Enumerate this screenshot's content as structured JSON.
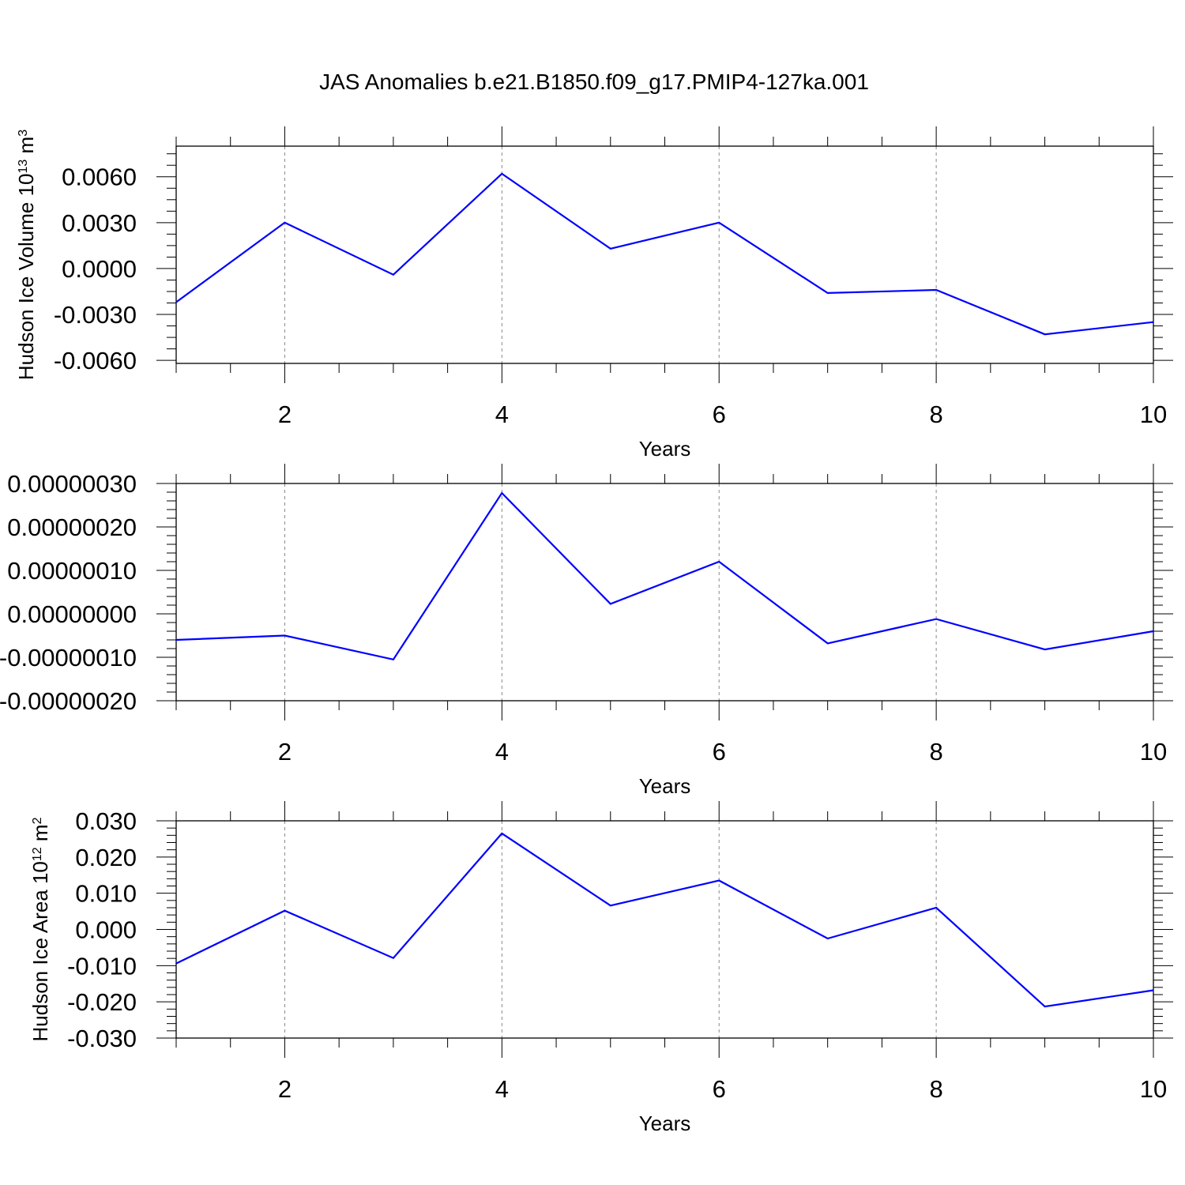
{
  "title": "JAS Anomalies b.e21.B1850.f09_g17.PMIP4-127ka.001",
  "colors": {
    "line": "#0000ff",
    "axis": "#000000",
    "grid": "#888888",
    "background": "#ffffff"
  },
  "chart_data": [
    {
      "type": "line",
      "ylabel": "Hudson Ice Volume 10",
      "ylabel_sup": "13",
      "ylabel_unit": " m",
      "ylabel_unit_sup": "3",
      "xlabel": "Years",
      "xlim": [
        1,
        10
      ],
      "ylim": [
        -0.0062,
        0.008
      ],
      "x": [
        1,
        2,
        3,
        4,
        5,
        6,
        7,
        8,
        9,
        10
      ],
      "values": [
        -0.0022,
        0.003,
        -0.0004,
        0.0062,
        0.0013,
        0.003,
        -0.0016,
        -0.0014,
        -0.0043,
        -0.0035
      ],
      "yticks": [
        -0.006,
        -0.003,
        0.0,
        0.003,
        0.006
      ],
      "ytick_labels": [
        "-0.0060",
        "-0.0030",
        "0.0000",
        "0.0030",
        "0.0060"
      ],
      "xticks": [
        2,
        4,
        6,
        8,
        10
      ],
      "xtick_labels": [
        "2",
        "4",
        "6",
        "8",
        "10"
      ],
      "ytick_minor_step": 0.00075,
      "grid": "vertical dashed at major x ticks"
    },
    {
      "type": "line",
      "ylabel": "",
      "xlabel": "Years",
      "xlim": [
        1,
        10
      ],
      "ylim": [
        -2e-07,
        3e-07
      ],
      "x": [
        1,
        2,
        3,
        4,
        5,
        6,
        7,
        8,
        9,
        10
      ],
      "values": [
        -6e-08,
        -5e-08,
        -1.05e-07,
        2.78e-07,
        2.3e-08,
        1.2e-07,
        -6.8e-08,
        -1.2e-08,
        -8.2e-08,
        -4e-08
      ],
      "yticks": [
        -2e-07,
        -1e-07,
        0.0,
        1e-07,
        2e-07,
        3e-07
      ],
      "ytick_labels": [
        "-0.00000020",
        "-0.00000010",
        "0.00000000",
        "0.00000010",
        "0.00000020",
        "0.00000030"
      ],
      "xticks": [
        2,
        4,
        6,
        8,
        10
      ],
      "xtick_labels": [
        "2",
        "4",
        "6",
        "8",
        "10"
      ],
      "ytick_minor_step": 2e-08,
      "grid": "vertical dashed at major x ticks"
    },
    {
      "type": "line",
      "ylabel": "Hudson Ice Area 10",
      "ylabel_sup": "12",
      "ylabel_unit": " m",
      "ylabel_unit_sup": "2",
      "xlabel": "Years",
      "xlim": [
        1,
        10
      ],
      "ylim": [
        -0.03,
        0.03
      ],
      "x": [
        1,
        2,
        3,
        4,
        5,
        6,
        7,
        8,
        9,
        10
      ],
      "values": [
        -0.0094,
        0.0052,
        -0.0079,
        0.0265,
        0.0066,
        0.0135,
        -0.0025,
        0.006,
        -0.0213,
        -0.0168
      ],
      "yticks": [
        -0.03,
        -0.02,
        -0.01,
        0.0,
        0.01,
        0.02,
        0.03
      ],
      "ytick_labels": [
        "-0.030",
        "-0.020",
        "-0.010",
        "0.000",
        "0.010",
        "0.020",
        "0.030"
      ],
      "xticks": [
        2,
        4,
        6,
        8,
        10
      ],
      "xtick_labels": [
        "2",
        "4",
        "6",
        "8",
        "10"
      ],
      "ytick_minor_step": 0.002,
      "grid": "vertical dashed at major x ticks"
    }
  ]
}
